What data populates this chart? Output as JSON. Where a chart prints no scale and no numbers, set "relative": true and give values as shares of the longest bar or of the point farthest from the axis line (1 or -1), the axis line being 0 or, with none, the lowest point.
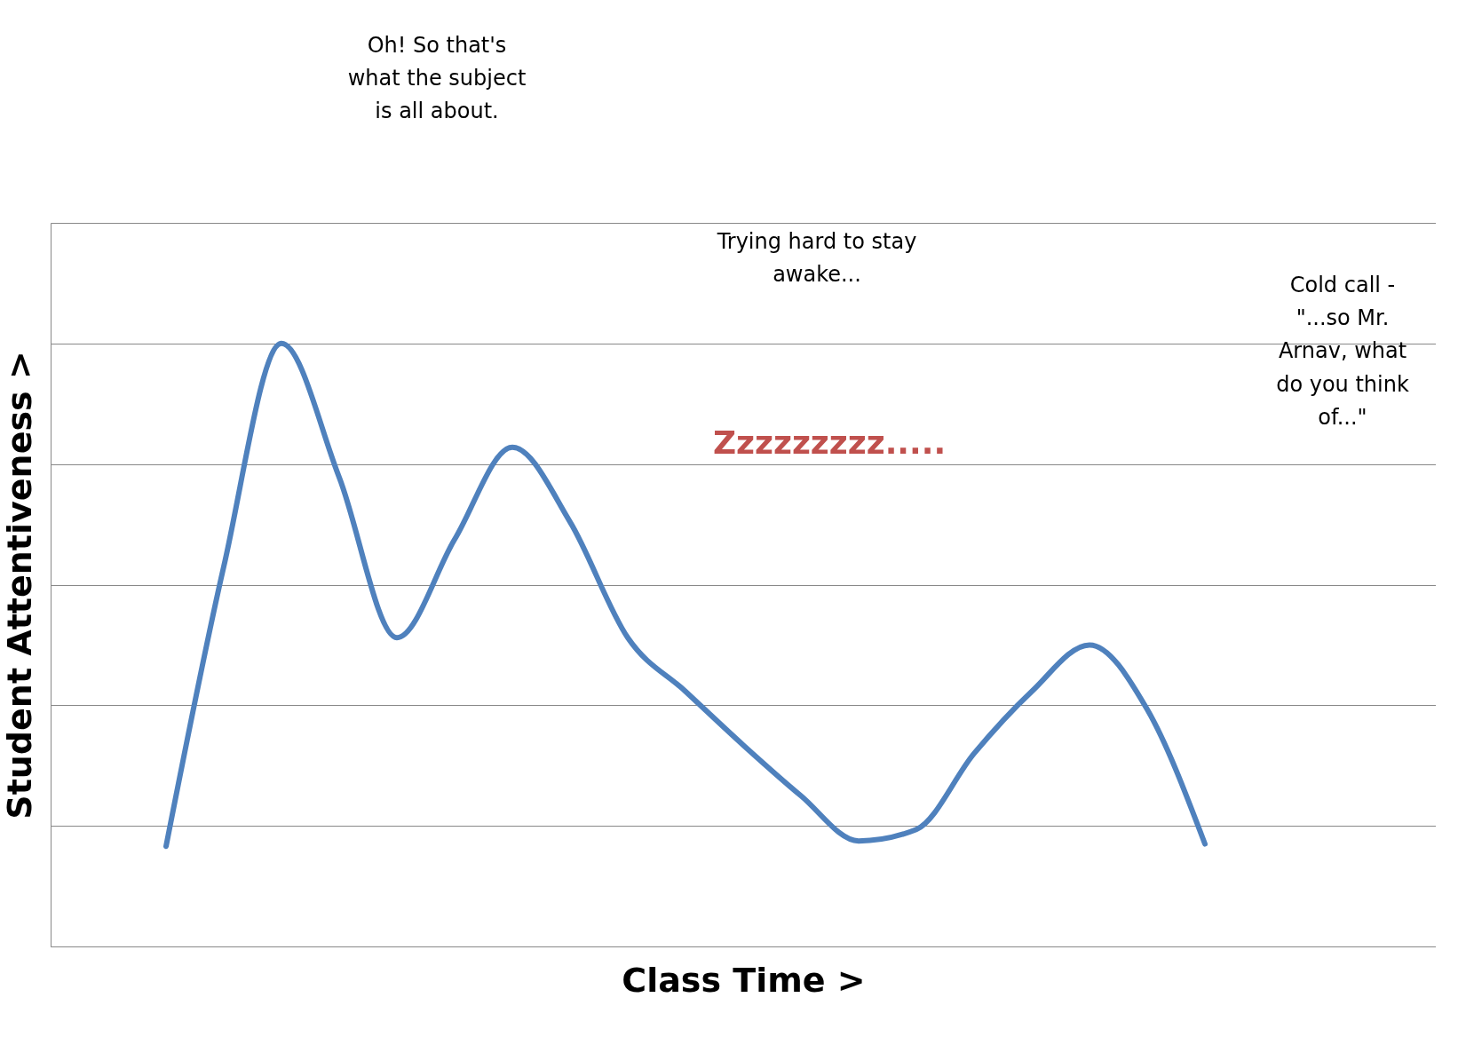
{
  "chart_data": {
    "type": "line",
    "relative": true,
    "xlabel": "Class Time          >",
    "ylabel": "Student Attentiveness          >",
    "categories": [
      null,
      null,
      null,
      null,
      null,
      null,
      null,
      null,
      null,
      null,
      null,
      null,
      null,
      null,
      null,
      null,
      null,
      null,
      null,
      null,
      null,
      null,
      null,
      null,
      null
    ],
    "series": [
      {
        "color": "#4f81bd",
        "values": [
          null,
          null,
          0.166,
          0.63,
          1,
          0.778,
          0.512,
          0.675,
          0.828,
          0.704,
          0.512,
          0.423,
          0.334,
          0.25,
          0.175,
          0.194,
          0.32,
          0.423,
          0.5,
          0.393,
          0.17,
          null,
          null,
          null,
          null
        ]
      }
    ],
    "annotations": [
      "Oh! So that's\nwhat the subject\nis all about.",
      "Trying hard to stay\nawake...",
      "Cold call -\n\"...so Mr.\nArnav, what\ndo you think\nof...\"",
      "Zzzzzzzzz....."
    ],
    "grid": "y",
    "marker": "none",
    "line_style": "solid"
  }
}
